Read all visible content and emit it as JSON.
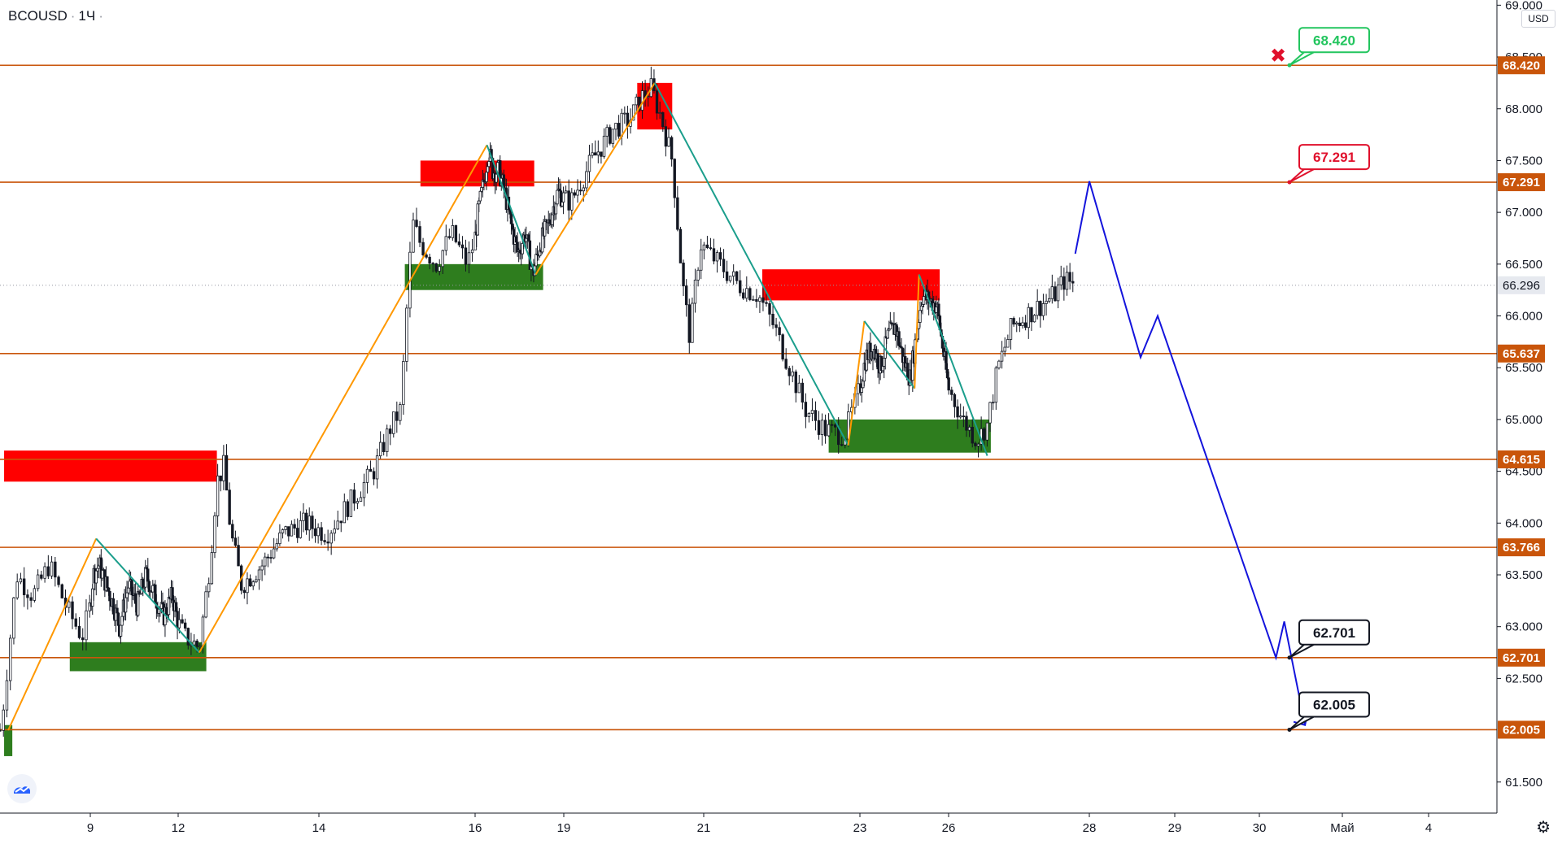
{
  "header": {
    "symbol": "BCOUSD",
    "interval": "1Ч",
    "currency": "USD"
  },
  "colors": {
    "level_line": "#c9550a",
    "level_label_bg": "#c9550a",
    "supply_zone": "#ff0000",
    "demand_zone": "#2e7d1e",
    "wave_up": "#ff9800",
    "wave_down": "#1b9e8c",
    "forecast": "#1414dc",
    "target_green": "#22c55e",
    "target_red": "#e0102c",
    "target_black": "#131722"
  },
  "icons": {
    "stop_marker": "x-mark-icon",
    "logo": "tradingview-logo-icon",
    "settings": "gear-icon"
  },
  "chart_data": {
    "type": "candlestick",
    "ylim": [
      61.2,
      69.05
    ],
    "y_ticks": [
      "69.000",
      "68.500",
      "68.000",
      "67.500",
      "67.000",
      "66.500",
      "66.000",
      "65.500",
      "65.000",
      "64.500",
      "64.000",
      "63.500",
      "63.000",
      "62.500",
      "61.500"
    ],
    "x_ticks": [
      {
        "label": "9",
        "day": 9
      },
      {
        "label": "12",
        "day": 12
      },
      {
        "label": "14",
        "day": 14
      },
      {
        "label": "16",
        "day": 16
      },
      {
        "label": "19",
        "day": 19
      },
      {
        "label": "21",
        "day": 21
      },
      {
        "label": "23",
        "day": 23
      },
      {
        "label": "26",
        "day": 26
      },
      {
        "label": "28",
        "day": 28
      },
      {
        "label": "29",
        "day": 29
      },
      {
        "label": "30",
        "day": 30
      },
      {
        "label": "Май",
        "day": 31
      },
      {
        "label": "4",
        "day": 32
      }
    ],
    "current_price": {
      "value": 66.296,
      "label": "66.296"
    },
    "levels": [
      {
        "value": 68.42,
        "label": "68.420"
      },
      {
        "value": 67.291,
        "label": "67.291"
      },
      {
        "value": 65.637,
        "label": "65.637"
      },
      {
        "value": 64.615,
        "label": "64.615"
      },
      {
        "value": 63.766,
        "label": "63.766"
      },
      {
        "value": 62.701,
        "label": "62.701"
      },
      {
        "value": 62.005,
        "label": "62.005"
      }
    ],
    "targets": [
      {
        "label": "68.420",
        "value": 68.42,
        "style": "green",
        "stop": true
      },
      {
        "label": "67.291",
        "value": 67.291,
        "style": "red",
        "stop": false
      },
      {
        "label": "62.701",
        "value": 62.701,
        "style": "black",
        "stop": false
      },
      {
        "label": "62.005",
        "value": 62.005,
        "style": "black",
        "stop": false
      }
    ],
    "zones": [
      {
        "kind": "supply",
        "x0": 7.95,
        "x1": 12.55,
        "y0": 64.4,
        "y1": 64.7
      },
      {
        "kind": "supply",
        "x0": 15.3,
        "x1": 18.0,
        "y0": 67.25,
        "y1": 67.5
      },
      {
        "kind": "supply",
        "x0": 20.05,
        "x1": 20.55,
        "y0": 67.8,
        "y1": 68.25
      },
      {
        "kind": "supply",
        "x0": 21.75,
        "x1": 25.7,
        "y0": 66.15,
        "y1": 66.45
      },
      {
        "kind": "demand",
        "x0": 8.75,
        "x1": 12.4,
        "y0": 62.57,
        "y1": 62.85
      },
      {
        "kind": "demand",
        "x0": 15.1,
        "x1": 18.3,
        "y0": 66.25,
        "y1": 66.5
      },
      {
        "kind": "demand",
        "x0": 22.6,
        "x1": 26.6,
        "y0": 64.68,
        "y1": 65.0
      },
      {
        "kind": "demand",
        "x0": 7.95,
        "x1": 8.05,
        "y0": 61.75,
        "y1": 62.05
      }
    ],
    "waves": [
      {
        "kind": "up",
        "points": [
          [
            8.0,
            62.0
          ],
          [
            9.2,
            63.85
          ]
        ]
      },
      {
        "kind": "down",
        "points": [
          [
            9.2,
            63.85
          ],
          [
            12.3,
            62.75
          ]
        ]
      },
      {
        "kind": "up",
        "points": [
          [
            12.3,
            62.75
          ],
          [
            16.4,
            67.65
          ]
        ]
      },
      {
        "kind": "down",
        "points": [
          [
            16.4,
            67.65
          ],
          [
            18.05,
            66.4
          ]
        ]
      },
      {
        "kind": "up",
        "points": [
          [
            18.05,
            66.4
          ],
          [
            20.3,
            68.25
          ]
        ]
      },
      {
        "kind": "down",
        "points": [
          [
            20.3,
            68.25
          ],
          [
            22.85,
            64.75
          ]
        ]
      },
      {
        "kind": "up",
        "points": [
          [
            22.85,
            64.75
          ],
          [
            23.15,
            65.95
          ]
        ]
      },
      {
        "kind": "down",
        "points": [
          [
            23.15,
            65.95
          ],
          [
            24.85,
            65.3
          ]
        ]
      },
      {
        "kind": "up",
        "points": [
          [
            24.85,
            65.3
          ],
          [
            25.0,
            66.4
          ]
        ]
      },
      {
        "kind": "down",
        "points": [
          [
            25.0,
            66.4
          ],
          [
            26.55,
            64.65
          ]
        ]
      }
    ],
    "forecast_path": [
      [
        27.8,
        66.6
      ],
      [
        28.0,
        67.3
      ],
      [
        28.6,
        65.6
      ],
      [
        28.8,
        66.0
      ],
      [
        30.2,
        62.7
      ],
      [
        30.3,
        63.05
      ],
      [
        30.55,
        62.05
      ],
      [
        30.45,
        62.1
      ]
    ],
    "price_path": [
      [
        7.9,
        62.0
      ],
      [
        7.95,
        62.3
      ],
      [
        8.1,
        63.5
      ],
      [
        8.3,
        63.3
      ],
      [
        8.5,
        63.6
      ],
      [
        8.7,
        63.2
      ],
      [
        8.9,
        62.9
      ],
      [
        9.1,
        63.5
      ],
      [
        9.3,
        63.6
      ],
      [
        9.55,
        63.4
      ],
      [
        9.8,
        63.2
      ],
      [
        10.0,
        63.0
      ],
      [
        10.3,
        63.4
      ],
      [
        10.6,
        63.2
      ],
      [
        10.9,
        63.5
      ],
      [
        11.2,
        63.3
      ],
      [
        11.5,
        63.1
      ],
      [
        11.8,
        63.3
      ],
      [
        12.1,
        62.9
      ],
      [
        12.3,
        62.8
      ],
      [
        12.45,
        63.6
      ],
      [
        12.55,
        64.4
      ],
      [
        12.65,
        64.55
      ],
      [
        12.75,
        63.9
      ],
      [
        12.9,
        63.4
      ],
      [
        13.2,
        63.6
      ],
      [
        13.5,
        63.9
      ],
      [
        13.8,
        64.0
      ],
      [
        14.1,
        63.9
      ],
      [
        14.4,
        64.2
      ],
      [
        14.7,
        64.5
      ],
      [
        14.9,
        64.9
      ],
      [
        15.05,
        65.1
      ],
      [
        15.15,
        66.4
      ],
      [
        15.2,
        66.9
      ],
      [
        15.3,
        66.7
      ],
      [
        15.5,
        66.5
      ],
      [
        15.7,
        66.8
      ],
      [
        15.9,
        66.5
      ],
      [
        16.1,
        67.0
      ],
      [
        16.3,
        67.3
      ],
      [
        16.45,
        67.6
      ],
      [
        16.6,
        67.4
      ],
      [
        16.8,
        67.4
      ],
      [
        17.0,
        67.2
      ],
      [
        17.2,
        66.9
      ],
      [
        17.45,
        66.6
      ],
      [
        17.7,
        66.8
      ],
      [
        17.95,
        66.4
      ],
      [
        18.2,
        66.7
      ],
      [
        18.5,
        66.9
      ],
      [
        18.8,
        67.2
      ],
      [
        19.1,
        67.1
      ],
      [
        19.4,
        67.5
      ],
      [
        19.7,
        67.8
      ],
      [
        19.95,
        67.9
      ],
      [
        20.1,
        68.1
      ],
      [
        20.25,
        68.2
      ],
      [
        20.4,
        67.9
      ],
      [
        20.55,
        67.5
      ],
      [
        20.7,
        66.3
      ],
      [
        20.8,
        65.8
      ],
      [
        20.95,
        66.7
      ],
      [
        21.2,
        66.5
      ],
      [
        21.45,
        66.3
      ],
      [
        21.7,
        66.2
      ],
      [
        21.9,
        65.9
      ],
      [
        22.1,
        65.5
      ],
      [
        22.3,
        65.1
      ],
      [
        22.55,
        64.9
      ],
      [
        22.8,
        64.85
      ],
      [
        23.0,
        65.3
      ],
      [
        23.2,
        65.6
      ],
      [
        23.45,
        65.7
      ],
      [
        23.7,
        65.5
      ],
      [
        23.95,
        65.8
      ],
      [
        24.2,
        65.9
      ],
      [
        24.45,
        65.6
      ],
      [
        24.7,
        65.4
      ],
      [
        24.9,
        65.8
      ],
      [
        25.1,
        66.2
      ],
      [
        25.35,
        66.15
      ],
      [
        25.6,
        66.1
      ],
      [
        25.8,
        65.7
      ],
      [
        26.0,
        65.3
      ],
      [
        26.2,
        65.0
      ],
      [
        26.4,
        64.8
      ],
      [
        26.55,
        64.95
      ],
      [
        26.7,
        65.5
      ],
      [
        26.9,
        65.9
      ],
      [
        27.1,
        66.0
      ],
      [
        27.3,
        66.1
      ],
      [
        27.5,
        66.2
      ],
      [
        27.65,
        66.35
      ],
      [
        27.8,
        66.3
      ]
    ]
  }
}
